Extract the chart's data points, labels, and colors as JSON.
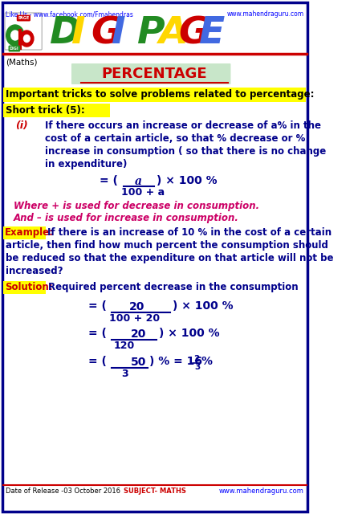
{
  "title": "PERCENTAGE",
  "subject": "Maths",
  "header_line1": "Like Us - www.facebook.com/Fmahendras",
  "header_line2": "www.mahendraguru.com",
  "footer_left": "Date of Release -03 October 2016",
  "footer_center": "SUBJECT- MATHS",
  "footer_right": "www.mahendraguru.com",
  "trick_header": "Important tricks to solve problems related to percentage:",
  "short_trick": "Short trick (5):",
  "item_i_label": "(i)",
  "item_i_text1": "If there occurs an increase or decrease of a% in the",
  "item_i_text2": "cost of a certain article, so that % decrease or %",
  "item_i_text3": "increase in consumption ( so that there is no change",
  "item_i_text4": "in expenditure)",
  "where_line1": "Where + is used for decrease in consumption.",
  "where_line2": "And – is used for increase in consumption.",
  "example_label": "Example:",
  "solution_label": "Solution:",
  "solution_text": "Required percent decrease in the consumption",
  "ex_line1": "If there is an increase of 10 % in the cost of a certain",
  "ex_line2": "article, then find how much percent the consumption should",
  "ex_line3": "be reduced so that the expenditure on that article will not be",
  "ex_line4": "increased?",
  "bg_color": "#ffffff",
  "border_color": "#00008B",
  "yellow_highlight": "#FFFF00",
  "title_bg": "#c8e6c9",
  "title_color": "#cc0000",
  "item_color": "#00008B",
  "red_color": "#cc0000",
  "pink_color": "#cc0066",
  "example_color": "#cc0000",
  "solution_label_color": "#cc0000",
  "digi_colors": [
    "#228B22",
    "#FFD700",
    "#cc0000",
    "#4169E1",
    "#228B22",
    "#FFD700",
    "#cc0000",
    "#4169E1"
  ],
  "digi_letters": [
    "D",
    "I",
    "G",
    "I",
    "P",
    "A",
    "G",
    "E"
  ]
}
